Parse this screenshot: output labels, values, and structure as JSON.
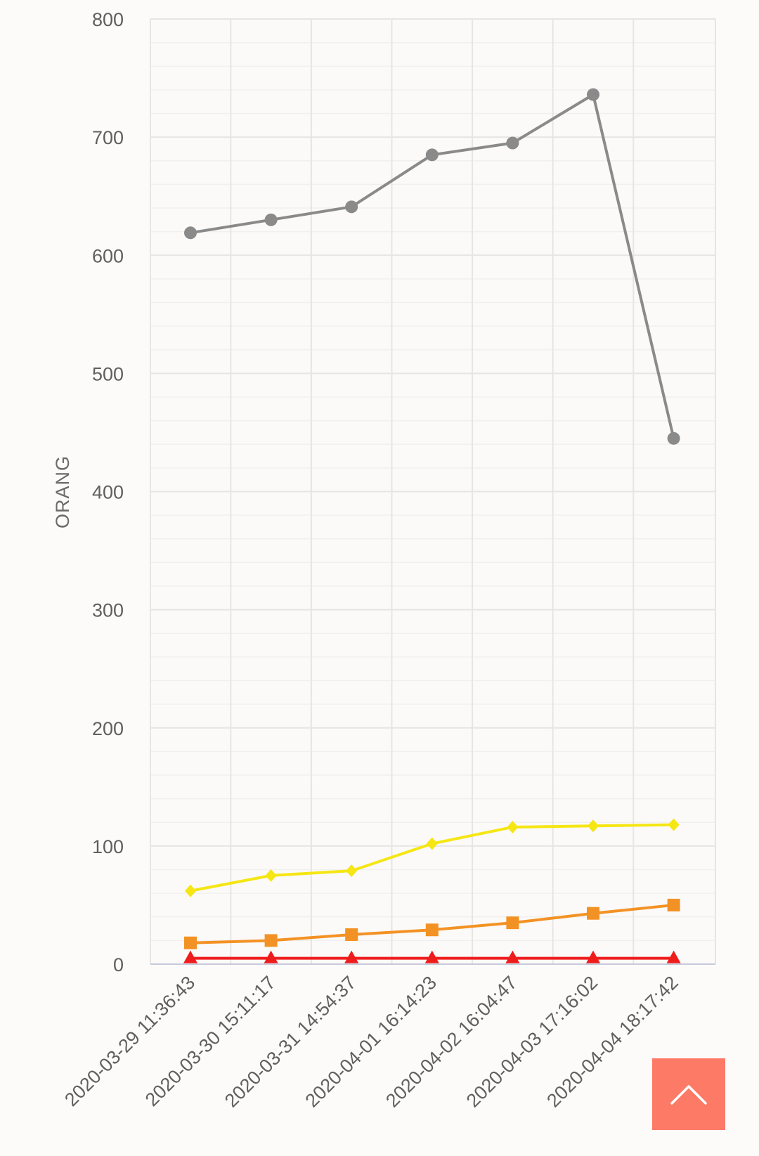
{
  "chart_data": {
    "type": "line",
    "title": "",
    "xlabel": "",
    "ylabel": "ORANG",
    "ylim": [
      0,
      800
    ],
    "y_major_ticks": [
      0,
      100,
      200,
      300,
      400,
      500,
      600,
      700,
      800
    ],
    "y_minor_step": 20,
    "grid": true,
    "legend": "none",
    "x": [
      "2020-03-29 11:36:43",
      "2020-03-30 15:11:17",
      "2020-03-31 14:54:37",
      "2020-04-01 16:14:23",
      "2020-04-02 16:04:47",
      "2020-04-03 17:16:02",
      "2020-04-04 18:17:42"
    ],
    "series": [
      {
        "color": "#8a8a8a",
        "marker": "circle",
        "values": [
          619,
          630,
          641,
          685,
          695,
          736,
          445
        ]
      },
      {
        "color": "#f5e614",
        "marker": "diamond",
        "values": [
          62,
          75,
          79,
          102,
          116,
          117,
          118
        ]
      },
      {
        "color": "#f39224",
        "marker": "square",
        "values": [
          18,
          20,
          25,
          29,
          35,
          43,
          50
        ]
      },
      {
        "color": "#ef1c1c",
        "marker": "triangle",
        "values": [
          5,
          5,
          5,
          5,
          5,
          5,
          5
        ]
      }
    ]
  },
  "scroll_top": {
    "icon": "chevron-up-icon",
    "color": "#fd7a67"
  }
}
